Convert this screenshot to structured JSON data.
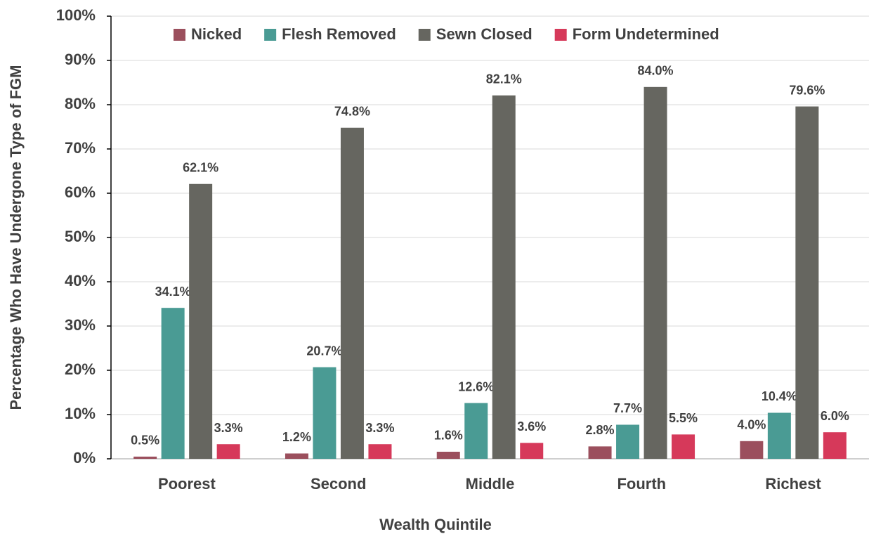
{
  "chart_data": {
    "type": "bar",
    "x_label": "Wealth Quintile",
    "y_label": "Percentage Who Have Undergone Type of FGM",
    "categories": [
      "Poorest",
      "Second",
      "Middle",
      "Fourth",
      "Richest"
    ],
    "series": [
      {
        "name": "Nicked",
        "color": "#9b4f5d",
        "values": [
          0.5,
          1.2,
          1.6,
          2.8,
          4.0
        ],
        "value_labels": [
          "0.5%",
          "1.2%",
          "1.6%",
          "2.8%",
          "4.0%"
        ]
      },
      {
        "name": "Flesh Removed",
        "color": "#4a9b94",
        "values": [
          34.1,
          20.7,
          12.6,
          7.7,
          10.4
        ],
        "value_labels": [
          "34.1%",
          "20.7%",
          "12.6%",
          "7.7%",
          "10.4%"
        ]
      },
      {
        "name": "Sewn Closed",
        "color": "#666660",
        "values": [
          62.1,
          74.8,
          82.1,
          84.0,
          79.6
        ],
        "value_labels": [
          "62.1%",
          "74.8%",
          "82.1%",
          "84.0%",
          "79.6%"
        ]
      },
      {
        "name": "Form Undetermined",
        "color": "#d6395a",
        "values": [
          3.3,
          3.3,
          3.6,
          5.5,
          6.0
        ],
        "value_labels": [
          "3.3%",
          "3.3%",
          "3.6%",
          "5.5%",
          "6.0%"
        ]
      }
    ],
    "ylim": [
      0,
      100
    ],
    "yticks": [
      {
        "value": 0,
        "label": "0%"
      },
      {
        "value": 10,
        "label": "10%"
      },
      {
        "value": 20,
        "label": "20%"
      },
      {
        "value": 30,
        "label": "30%"
      },
      {
        "value": 40,
        "label": "40%"
      },
      {
        "value": 50,
        "label": "50%"
      },
      {
        "value": 60,
        "label": "60%"
      },
      {
        "value": 70,
        "label": "70%"
      },
      {
        "value": 80,
        "label": "80%"
      },
      {
        "value": 90,
        "label": "90%"
      },
      {
        "value": 100,
        "label": "100%"
      }
    ],
    "grid": true,
    "legend": "top"
  }
}
